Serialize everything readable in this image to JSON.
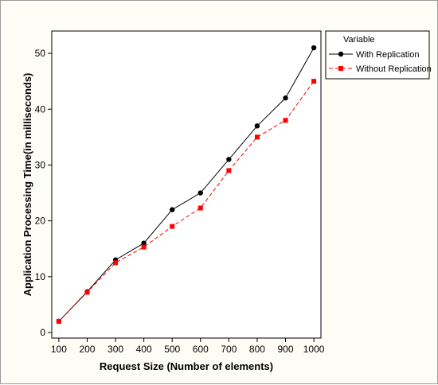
{
  "chart_data": {
    "type": "line",
    "xlabel": "Request Size (Number of elements)",
    "ylabel": "Application Processing Time(in milliseconds)",
    "x": [
      100,
      200,
      300,
      400,
      500,
      600,
      700,
      800,
      900,
      1000
    ],
    "xlim": [
      75,
      1025
    ],
    "ylim": [
      -1,
      54
    ],
    "x_ticks": [
      100,
      200,
      300,
      400,
      500,
      600,
      700,
      800,
      900,
      1000
    ],
    "y_ticks": [
      0,
      10,
      20,
      30,
      40,
      50
    ],
    "legend": {
      "title": "Variable",
      "placement": "right"
    },
    "series": [
      {
        "name": "With Replication",
        "values": [
          2,
          7.3,
          13,
          16,
          22,
          25,
          31,
          37,
          42,
          51
        ],
        "color": "#000000",
        "marker": "circle",
        "line_style": "solid"
      },
      {
        "name": "Without Replication",
        "values": [
          2,
          7.2,
          12.5,
          15.3,
          19,
          22.3,
          29,
          35,
          38,
          45
        ],
        "color": "#ff0000",
        "marker": "square",
        "line_style": "dashed"
      }
    ]
  }
}
